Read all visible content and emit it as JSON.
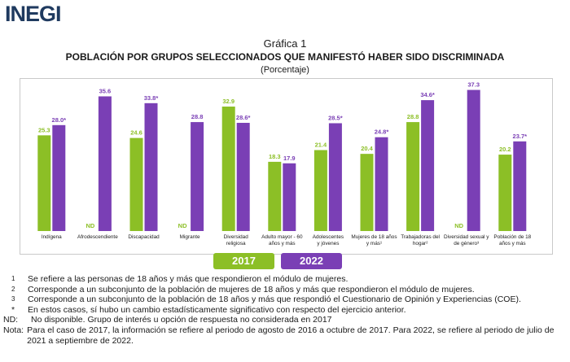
{
  "header": {
    "logo_text": "INEGI"
  },
  "title": {
    "number": "Gráfica 1",
    "main": "POBLACIÓN POR GRUPOS SELECCIONADOS QUE MANIFESTÓ HABER SIDO DISCRIMINADA",
    "subtitle": "(Porcentaje)"
  },
  "colors": {
    "y2017": "#8cbf26",
    "y2022": "#7a3fb5",
    "logo": "#1f3a5f"
  },
  "legend": {
    "label_2017": "2017",
    "label_2022": "2022"
  },
  "chart_data": {
    "type": "bar",
    "title": "Población por grupos seleccionados que manifestó haber sido discriminada",
    "ylabel": "Porcentaje",
    "ylim": [
      0,
      40
    ],
    "categories": [
      [
        "Indígena"
      ],
      [
        "Afrodescendiente"
      ],
      [
        "Discapacidad"
      ],
      [
        "Migrante"
      ],
      [
        "Diversidad",
        "religiosa"
      ],
      [
        "Adulto mayor - 60",
        "años y más"
      ],
      [
        "Adolescentes",
        "y jóvenes"
      ],
      [
        "Mujeres de 18 años",
        "y más¹"
      ],
      [
        "Trabajadoras del",
        "hogar²"
      ],
      [
        "Diversidad sexual y",
        "de género³"
      ],
      [
        "Población de 18",
        "años y más"
      ]
    ],
    "series": [
      {
        "name": "2017",
        "values": [
          25.3,
          null,
          24.6,
          null,
          32.9,
          18.3,
          21.4,
          20.4,
          28.8,
          null,
          20.2
        ],
        "labels": [
          "25.3",
          "ND",
          "24.6",
          "ND",
          "32.9",
          "18.3",
          "21.4",
          "20.4",
          "28.8",
          "ND",
          "20.2"
        ]
      },
      {
        "name": "2022",
        "values": [
          28.0,
          35.6,
          33.8,
          28.8,
          28.6,
          17.9,
          28.5,
          24.8,
          34.6,
          37.3,
          23.7
        ],
        "labels": [
          "28.0*",
          "35.6",
          "33.8*",
          "28.8",
          "28.6*",
          "17.9",
          "28.5*",
          "24.8*",
          "34.6*",
          "37.3",
          "23.7*"
        ]
      }
    ]
  },
  "notes": [
    {
      "key": "1",
      "text": "Se refiere a las personas de 18 años y más que respondieron el módulo de mujeres."
    },
    {
      "key": "2",
      "text": "Corresponde a un subconjunto de la población de mujeres de 18 años y más que respondieron el módulo de mujeres."
    },
    {
      "key": "3",
      "text": "Corresponde a un subconjunto de la población de 18 años y más que respondió el Cuestionario de Opinión y Experiencias (COE)."
    },
    {
      "key": "*",
      "text": "En estos casos, sí hubo un cambio estadísticamente significativo con respecto del ejercicio anterior."
    }
  ],
  "nd_note": {
    "key": "ND:",
    "text": "No disponible. Grupo de interés u opción de respuesta no considerada en 2017"
  },
  "nota": {
    "key": "Nota:",
    "text": "Para el caso de 2017, la información se refiere al periodo de agosto de 2016 a octubre de 2017. Para 2022, se refiere al periodo de julio de 2021 a septiembre de 2022."
  }
}
